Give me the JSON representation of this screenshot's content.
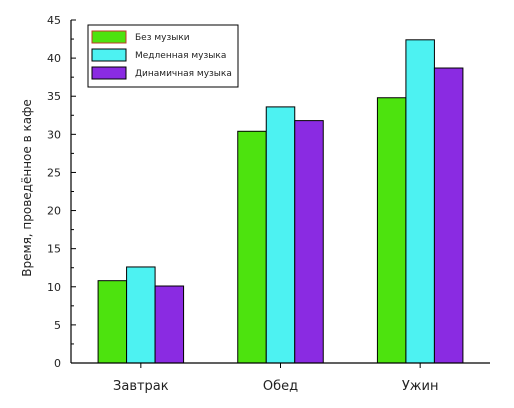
{
  "chart_data": {
    "type": "bar",
    "categories": [
      "Завтрак",
      "Обед",
      "Ужин"
    ],
    "series": [
      {
        "name": "Без музыки",
        "color": "#4de30e",
        "values": [
          10.8,
          30.4,
          34.8
        ]
      },
      {
        "name": "Медленная музыка",
        "color": "#4df2f2",
        "values": [
          12.6,
          33.6,
          42.4
        ]
      },
      {
        "name": "Динамичная музыка",
        "color": "#8a2be2",
        "values": [
          10.1,
          31.8,
          38.7
        ]
      }
    ],
    "ylabel": "Время, проведённое в кафе",
    "xlabel": "",
    "ylim": [
      0,
      45
    ],
    "yticks": [
      0,
      5,
      10,
      15,
      20,
      25,
      30,
      35,
      40,
      45
    ],
    "grid": false,
    "legend_position": "top-left",
    "legend_border_color": "#000000"
  }
}
